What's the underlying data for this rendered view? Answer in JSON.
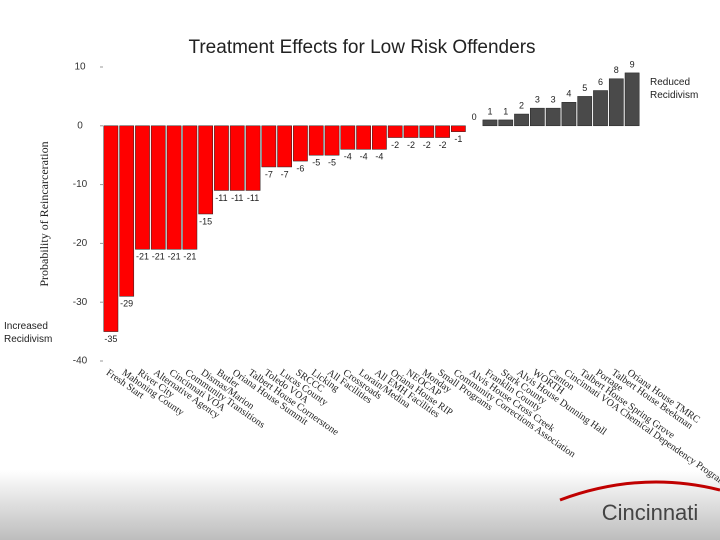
{
  "chart_data": {
    "type": "bar",
    "title": "Treatment Effects for Low Risk Offenders",
    "y_label": "Probability of Reincarceration",
    "annotations": [
      "Reduced Recidivism",
      "Increased Recidivism"
    ],
    "categories": [
      "Fresh Start",
      "Mahoning County",
      "River City",
      "Alternative Agency",
      "Cincinnati VOA",
      "Community Transitions",
      "Dismas/Marion",
      "Butler",
      "Oriana House Summit",
      "Talbert House Cornerstone",
      "Toledo VOA",
      "Lucas County",
      "SRCCC",
      "Licking",
      "All Facilities",
      "Crossroads",
      "Lorain/Medina",
      "All EMH Facilities",
      "Oriana House RIP",
      "NEOCAP",
      "Monday",
      "Small Programs",
      "Community Corrections Association",
      "Alvis House Cross Creek",
      "Franklin County",
      "Stark County",
      "Alvis House Dunning Hall",
      "WORTH",
      "Canton",
      "Cincinnati VOA Chemical Dependency Program",
      "Talbert House Spring Grove",
      "Portage",
      "Talbert House Beekman",
      "Oriana House TMRC"
    ],
    "values": [
      -35,
      -29,
      -21,
      -21,
      -21,
      -21,
      -15,
      -11,
      -11,
      -11,
      -7,
      -7,
      -6,
      -5,
      -5,
      -4,
      -4,
      -4,
      -2,
      -2,
      -2,
      -2,
      -1,
      0,
      1,
      1,
      2,
      3,
      3,
      4,
      5,
      6,
      8,
      9
    ],
    "negative_color": "#ff0000",
    "positive_color": "#4a4a4a",
    "ylim": [
      -40,
      10
    ],
    "yticks": [
      -40,
      -30,
      -20,
      -10,
      0,
      10
    ]
  },
  "branding": "Cincinnati"
}
